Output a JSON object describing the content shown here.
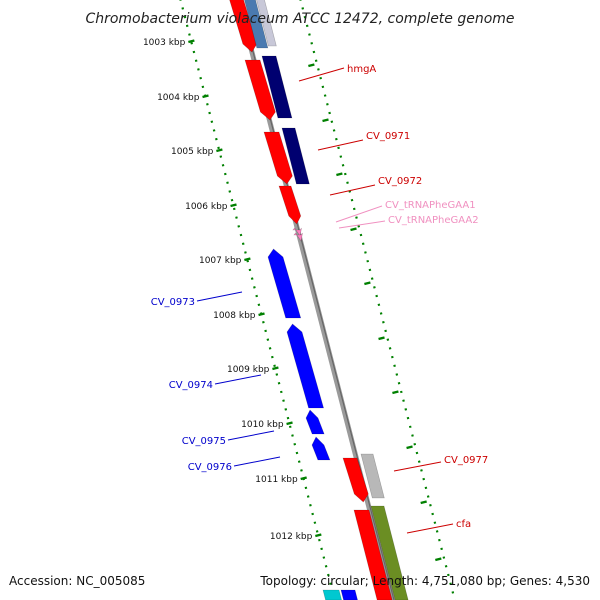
{
  "header": {
    "title": "Chromobacterium violaceum ATCC 12472, complete genome"
  },
  "footer": {
    "accession": "Accession: NC_005085",
    "summary": "Topology: circular; Length: 4,751,080 bp; Genes: 4,530"
  },
  "map": {
    "ruler": {
      "unit": "kbp",
      "ticks": [
        "1003 kbp",
        "1004 kbp",
        "1005 kbp",
        "1006 kbp",
        "1007 kbp",
        "1008 kbp",
        "1009 kbp",
        "1010 kbp",
        "1011 kbp",
        "1012 kbp"
      ]
    },
    "colors": {
      "forward_cds": "#ff0000",
      "reverse_cds": "#0000ff",
      "trna": "#ff80c0",
      "cog_navy": "#000070",
      "cog_grey": "#b8b8b8",
      "cog_olive": "#6b8e23",
      "backbone": "#888888",
      "ruler": "#008000"
    },
    "gene_labels": [
      {
        "id": "hmgA",
        "text": "hmgA",
        "color": "#cc0000"
      },
      {
        "id": "CV_0971",
        "text": "CV_0971",
        "color": "#cc0000"
      },
      {
        "id": "CV_0972",
        "text": "CV_0972",
        "color": "#cc0000"
      },
      {
        "id": "CV_tRNAPheGAA1",
        "text": "CV_tRNAPheGAA1",
        "color": "#f090c0"
      },
      {
        "id": "CV_tRNAPheGAA2",
        "text": "CV_tRNAPheGAA2",
        "color": "#f090c0"
      },
      {
        "id": "CV_0973",
        "text": "CV_0973",
        "color": "#0000cc"
      },
      {
        "id": "CV_0974",
        "text": "CV_0974",
        "color": "#0000cc"
      },
      {
        "id": "CV_0975",
        "text": "CV_0975",
        "color": "#0000cc"
      },
      {
        "id": "CV_0976",
        "text": "CV_0976",
        "color": "#0000cc"
      },
      {
        "id": "CV_0977",
        "text": "CV_0977",
        "color": "#cc0000"
      },
      {
        "id": "cfa",
        "text": "cfa",
        "color": "#cc0000"
      }
    ]
  }
}
